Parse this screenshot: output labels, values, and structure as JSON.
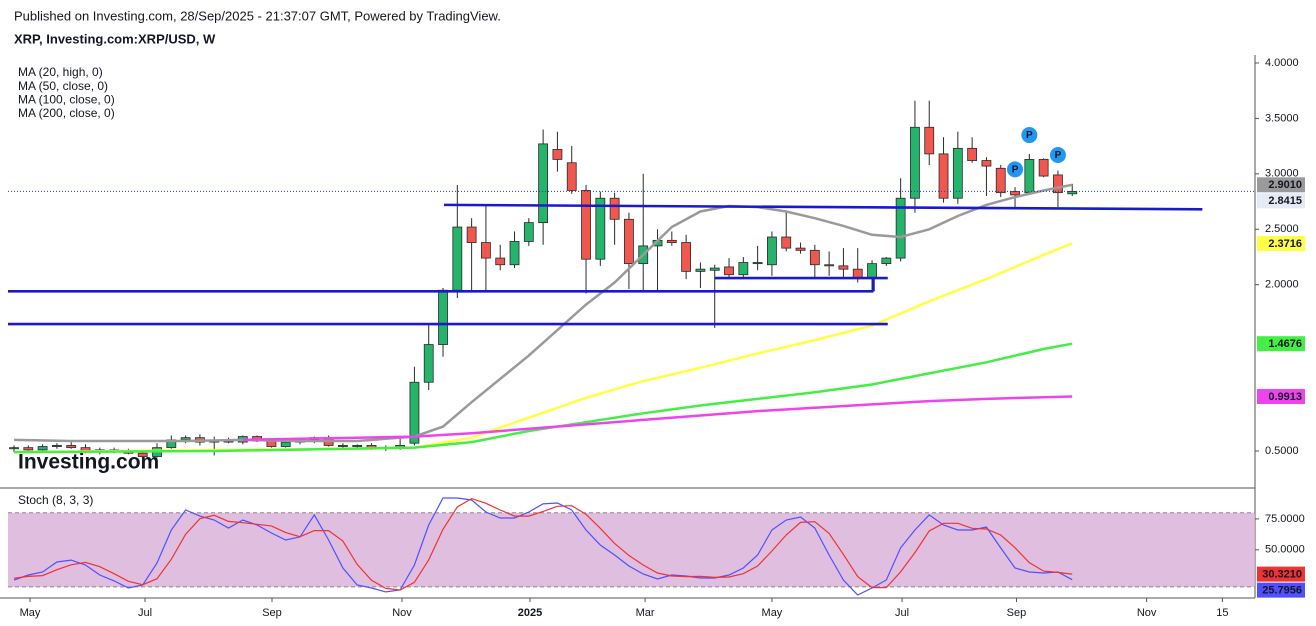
{
  "header": {
    "published": "Published on Investing.com, 28/Sep/2025 - 21:37:07 GMT, Powered by TradingView.",
    "symbol": "XRP, Investing.com:XRP/USD, W"
  },
  "watermark": "Investing.com",
  "chart_data": [
    {
      "type": "candlestick",
      "up_color": "#26b36b",
      "down_color": "#f0584f",
      "last_price_color": "#1f3fa8",
      "open": [
        0.52,
        0.53,
        0.51,
        0.54,
        0.55,
        0.53,
        0.5,
        0.51,
        0.49,
        0.48,
        0.45,
        0.53,
        0.6,
        0.62,
        0.58,
        0.59,
        0.58,
        0.63,
        0.59,
        0.54,
        0.58,
        0.6,
        0.62,
        0.55,
        0.54,
        0.55,
        0.52,
        0.53,
        0.57,
        1.12,
        1.46,
        1.95,
        2.52,
        2.38,
        2.24,
        2.18,
        2.39,
        2.56,
        3.22,
        3.1,
        2.85,
        2.23,
        2.78,
        2.59,
        2.19,
        2.35,
        2.4,
        2.38,
        2.12,
        2.13,
        2.16,
        2.09,
        2.19,
        2.18,
        2.43,
        2.33,
        2.31,
        2.18,
        2.17,
        2.14,
        2.06,
        2.19,
        2.24,
        2.78,
        3.42,
        3.18,
        2.78,
        3.23,
        3.12,
        3.05,
        2.84,
        2.83,
        3.13,
        2.99,
        2.82
      ],
      "high": [
        0.55,
        0.55,
        0.56,
        0.57,
        0.58,
        0.56,
        0.53,
        0.53,
        0.52,
        0.5,
        0.57,
        0.64,
        0.64,
        0.65,
        0.63,
        0.62,
        0.64,
        0.64,
        0.6,
        0.6,
        0.62,
        0.63,
        0.64,
        0.57,
        0.56,
        0.57,
        0.55,
        0.62,
        1.26,
        1.64,
        1.97,
        2.9,
        2.6,
        2.72,
        2.36,
        2.48,
        2.6,
        3.4,
        3.38,
        3.25,
        2.9,
        2.84,
        2.83,
        2.65,
        3.0,
        2.5,
        2.48,
        2.45,
        2.2,
        2.18,
        2.24,
        2.25,
        2.35,
        2.48,
        2.65,
        2.38,
        2.36,
        2.3,
        2.33,
        2.33,
        2.22,
        2.25,
        2.96,
        3.66,
        3.66,
        3.33,
        3.38,
        3.33,
        3.15,
        3.08,
        2.88,
        3.18,
        3.14,
        3.03,
        2.91
      ],
      "low": [
        0.49,
        0.5,
        0.49,
        0.52,
        0.52,
        0.48,
        0.47,
        0.48,
        0.47,
        0.41,
        0.44,
        0.52,
        0.57,
        0.55,
        0.46,
        0.57,
        0.56,
        0.58,
        0.53,
        0.53,
        0.56,
        0.57,
        0.54,
        0.53,
        0.53,
        0.51,
        0.5,
        0.51,
        0.55,
        1.05,
        1.35,
        1.88,
        1.95,
        1.95,
        2.13,
        2.15,
        2.35,
        2.36,
        3.02,
        2.82,
        1.92,
        2.17,
        2.36,
        1.96,
        1.95,
        1.93,
        2.35,
        2.05,
        1.97,
        1.61,
        2.06,
        2.05,
        2.13,
        2.08,
        2.3,
        2.28,
        2.05,
        2.08,
        2.05,
        2.02,
        1.94,
        2.17,
        2.21,
        2.65,
        3.08,
        2.74,
        2.73,
        3.1,
        2.8,
        2.79,
        2.7,
        2.82,
        2.97,
        2.7,
        2.8
      ],
      "close": [
        0.53,
        0.51,
        0.54,
        0.55,
        0.53,
        0.5,
        0.51,
        0.49,
        0.48,
        0.45,
        0.53,
        0.6,
        0.62,
        0.58,
        0.59,
        0.58,
        0.63,
        0.59,
        0.54,
        0.58,
        0.6,
        0.62,
        0.55,
        0.54,
        0.55,
        0.52,
        0.53,
        0.55,
        1.12,
        1.46,
        1.95,
        2.52,
        2.38,
        2.24,
        2.18,
        2.39,
        2.56,
        3.27,
        3.13,
        2.85,
        2.23,
        2.78,
        2.59,
        2.19,
        2.35,
        2.4,
        2.38,
        2.12,
        2.14,
        2.15,
        2.09,
        2.2,
        2.2,
        2.43,
        2.33,
        2.31,
        2.18,
        2.17,
        2.14,
        2.06,
        2.19,
        2.24,
        2.78,
        3.42,
        3.18,
        2.78,
        3.23,
        3.12,
        3.07,
        2.83,
        2.81,
        3.13,
        2.98,
        2.83,
        2.8415
      ],
      "series": [
        {
          "name": "MA (20, high, 0)",
          "color": "#9a9a9a",
          "last_value_label": "2.9010",
          "x": [
            0,
            4,
            8,
            12,
            16,
            20,
            24,
            28,
            30,
            32,
            34,
            36,
            38,
            40,
            42,
            44,
            46,
            48,
            50,
            52,
            54,
            56,
            58,
            60,
            62,
            64,
            66,
            68,
            70,
            72,
            74
          ],
          "values": [
            0.6,
            0.59,
            0.59,
            0.59,
            0.6,
            0.59,
            0.59,
            0.63,
            0.72,
            0.94,
            1.15,
            1.36,
            1.59,
            1.82,
            2.02,
            2.27,
            2.52,
            2.66,
            2.71,
            2.7,
            2.66,
            2.6,
            2.53,
            2.45,
            2.43,
            2.5,
            2.62,
            2.72,
            2.79,
            2.85,
            2.901
          ]
        },
        {
          "name": "MA (50, close, 0)",
          "color": "#ffff44",
          "last_value_label": "2.3716",
          "x": [
            0,
            8,
            16,
            24,
            28,
            32,
            36,
            40,
            44,
            48,
            52,
            56,
            60,
            64,
            68,
            72,
            74
          ],
          "values": [
            0.49,
            0.5,
            0.51,
            0.52,
            0.53,
            0.62,
            0.8,
            0.98,
            1.13,
            1.25,
            1.38,
            1.5,
            1.63,
            1.85,
            2.05,
            2.27,
            2.3716
          ]
        },
        {
          "name": "MA (100, close, 0)",
          "color": "#44ee44",
          "last_value_label": "1.4676",
          "x": [
            0,
            14,
            28,
            32,
            36,
            40,
            44,
            48,
            52,
            56,
            60,
            64,
            68,
            72,
            74
          ],
          "values": [
            0.49,
            0.5,
            0.53,
            0.58,
            0.68,
            0.76,
            0.84,
            0.91,
            0.97,
            1.03,
            1.1,
            1.2,
            1.3,
            1.42,
            1.4676
          ]
        },
        {
          "name": "MA (200, close, 0)",
          "color": "#ee44ee",
          "last_value_label": "0.9913",
          "x": [
            16,
            20,
            24,
            28,
            32,
            36,
            40,
            44,
            48,
            52,
            56,
            60,
            64,
            68,
            72,
            74
          ],
          "values": [
            0.6,
            0.61,
            0.62,
            0.63,
            0.66,
            0.7,
            0.74,
            0.78,
            0.82,
            0.86,
            0.89,
            0.92,
            0.95,
            0.97,
            0.985,
            0.9913
          ]
        }
      ],
      "drawings": [
        {
          "x1": 30.07,
          "y1": 2.72,
          "x2": 83.1,
          "y2": 2.68,
          "color": "#1a1acc"
        },
        {
          "x1": -0.42,
          "y1": 1.94,
          "x2": 60.1,
          "y2": 1.94,
          "color": "#1a1acc"
        },
        {
          "x1": -0.42,
          "y1": 1.645,
          "x2": 61.1,
          "y2": 1.645,
          "color": "#1a1acc"
        },
        {
          "x1": 49.0,
          "y1": 2.06,
          "x2": 61.1,
          "y2": 2.06,
          "color": "#1a1acc"
        },
        {
          "x1": 60.1,
          "y1": 2.06,
          "x2": 60.1,
          "y2": 1.94,
          "color": "#1a1acc"
        }
      ],
      "markers": [
        {
          "x": 70,
          "y": 3.04,
          "label": "P"
        },
        {
          "x": 71,
          "y": 3.35,
          "label": "P"
        },
        {
          "x": 73,
          "y": 3.17,
          "label": "P"
        }
      ],
      "marker_color": "#2196f3",
      "xlim": [
        -0.42,
        86.78
      ],
      "xticks": [
        {
          "value": 1.12,
          "label": "May"
        },
        {
          "value": 9.16,
          "label": "Jul"
        },
        {
          "value": 18.04,
          "label": "Sep"
        },
        {
          "value": 27.13,
          "label": "Nov"
        },
        {
          "value": 36.08,
          "label": "2025"
        },
        {
          "value": 44.13,
          "label": "Mar"
        },
        {
          "value": 53.0,
          "label": "May"
        },
        {
          "value": 62.1,
          "label": "Jul"
        },
        {
          "value": 70.1,
          "label": "Sep"
        },
        {
          "value": 79.2,
          "label": "Nov"
        },
        {
          "value": 84.5,
          "label": "15"
        }
      ],
      "ylim": [
        0.166,
        4.072
      ],
      "yticks": [
        {
          "value": 4,
          "label": "4.0000"
        },
        {
          "value": 3.5,
          "label": "3.5000"
        },
        {
          "value": 3,
          "label": "3.0000"
        },
        {
          "value": 2.5,
          "label": "2.5000"
        },
        {
          "value": 2,
          "label": "2.0000"
        },
        {
          "value": 0.5,
          "label": "0.5000"
        }
      ]
    },
    {
      "type": "stochastic",
      "title": "Stoch (8, 3, 3)",
      "bands": [
        20,
        80
      ],
      "band_color": "#d9b3d9",
      "series": [
        {
          "color": "#5050ff",
          "values": [
            25.6,
            29.6,
            32.0,
            40.1,
            41.7,
            37.7,
            29.6,
            24.8,
            19.1,
            21.5,
            39.3,
            66.0,
            82.2,
            77.3,
            74.1,
            67.6,
            74.1,
            70.1,
            63.6,
            57.9,
            60.4,
            78.2,
            57.9,
            35.3,
            21.5,
            19.1,
            15.9,
            17.5,
            37.7,
            70.1,
            91.9,
            91.9,
            90.3,
            80.6,
            75.7,
            75.7,
            80.6,
            87.1,
            87.9,
            82.2,
            66.0,
            53.9,
            45.8,
            36.9,
            30.4,
            26.4,
            29.6,
            28.8,
            27.2,
            27.2,
            29.6,
            35.3,
            45.8,
            66.0,
            74.1,
            76.5,
            67.6,
            45.8,
            25.6,
            13.4,
            19.1,
            25.6,
            51.5,
            66.0,
            78.2,
            70.1,
            66.0,
            66.0,
            68.4,
            51.5,
            35.3,
            32.0,
            31.2,
            32.0,
            25.7956
          ]
        },
        {
          "color": "#ee3333",
          "last_value_label": "30.3210",
          "values": [
            27.0,
            28.5,
            29.1,
            33.9,
            37.9,
            39.8,
            36.3,
            30.7,
            24.5,
            21.8,
            26.6,
            42.3,
            62.5,
            75.2,
            77.9,
            73.0,
            71.9,
            70.6,
            69.3,
            63.9,
            60.6,
            65.5,
            65.5,
            57.1,
            38.2,
            25.3,
            18.8,
            17.5,
            23.7,
            41.8,
            66.6,
            84.6,
            91.4,
            87.6,
            82.2,
            77.3,
            77.3,
            81.1,
            85.2,
            85.7,
            78.7,
            67.4,
            55.2,
            45.5,
            37.7,
            31.2,
            28.8,
            28.3,
            28.5,
            27.7,
            28.0,
            30.7,
            36.9,
            49.0,
            62.0,
            72.2,
            72.7,
            63.3,
            46.3,
            28.3,
            19.4,
            19.4,
            32.1,
            47.7,
            65.2,
            71.4,
            71.4,
            67.4,
            66.8,
            62.0,
            51.7,
            39.6,
            32.8,
            31.7,
            30.321
          ]
        }
      ],
      "ylim": [
        11,
        100
      ],
      "yticks": [
        {
          "value": 75,
          "label": "75.0000"
        },
        {
          "value": 50,
          "label": "50.0000"
        }
      ]
    }
  ]
}
